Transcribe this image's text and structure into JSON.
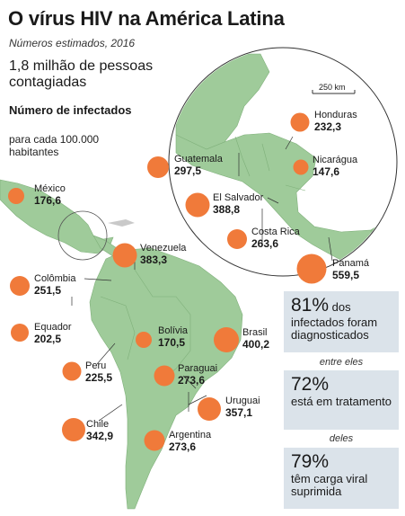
{
  "title": "O vírus HIV na América Latina",
  "subtitle": "Números estimados, 2016",
  "total": "1,8 milhão de pessoas contagiadas",
  "legend": {
    "head": "Número de infectados",
    "sub": "para cada 100.000 habitantes"
  },
  "scale_label": "250 km",
  "colors": {
    "land": "#9fcb9a",
    "land_dark": "#8bbd86",
    "circle": "#f07a3a",
    "box": "#dbe3ea"
  },
  "countries": [
    {
      "name": "México",
      "value": "176,6"
    },
    {
      "name": "Colômbia",
      "value": "251,5"
    },
    {
      "name": "Equador",
      "value": "202,5"
    },
    {
      "name": "Peru",
      "value": "225,5"
    },
    {
      "name": "Chile",
      "value": "342,9"
    },
    {
      "name": "Venezuela",
      "value": "383,3"
    },
    {
      "name": "Bolívia",
      "value": "170,5"
    },
    {
      "name": "Brasil",
      "value": "400,2"
    },
    {
      "name": "Paraguai",
      "value": "273,6"
    },
    {
      "name": "Uruguai",
      "value": "357,1"
    },
    {
      "name": "Argentina",
      "value": "273,6"
    },
    {
      "name": "Guatemala",
      "value": "297,5"
    },
    {
      "name": "Honduras",
      "value": "232,3"
    },
    {
      "name": "Nicarágua",
      "value": "147,6"
    },
    {
      "name": "El Salvador",
      "value": "388,8"
    },
    {
      "name": "Costa Rica",
      "value": "263,6"
    },
    {
      "name": "Panamá",
      "value": "559,5"
    }
  ],
  "stats": [
    {
      "pct": "81%",
      "text": "dos infectados foram diagnosticados"
    },
    {
      "connector": "entre eles"
    },
    {
      "pct": "72%",
      "text": "está em tratamento"
    },
    {
      "connector": "deles"
    },
    {
      "pct": "79%",
      "text": "têm carga viral suprimida"
    }
  ]
}
